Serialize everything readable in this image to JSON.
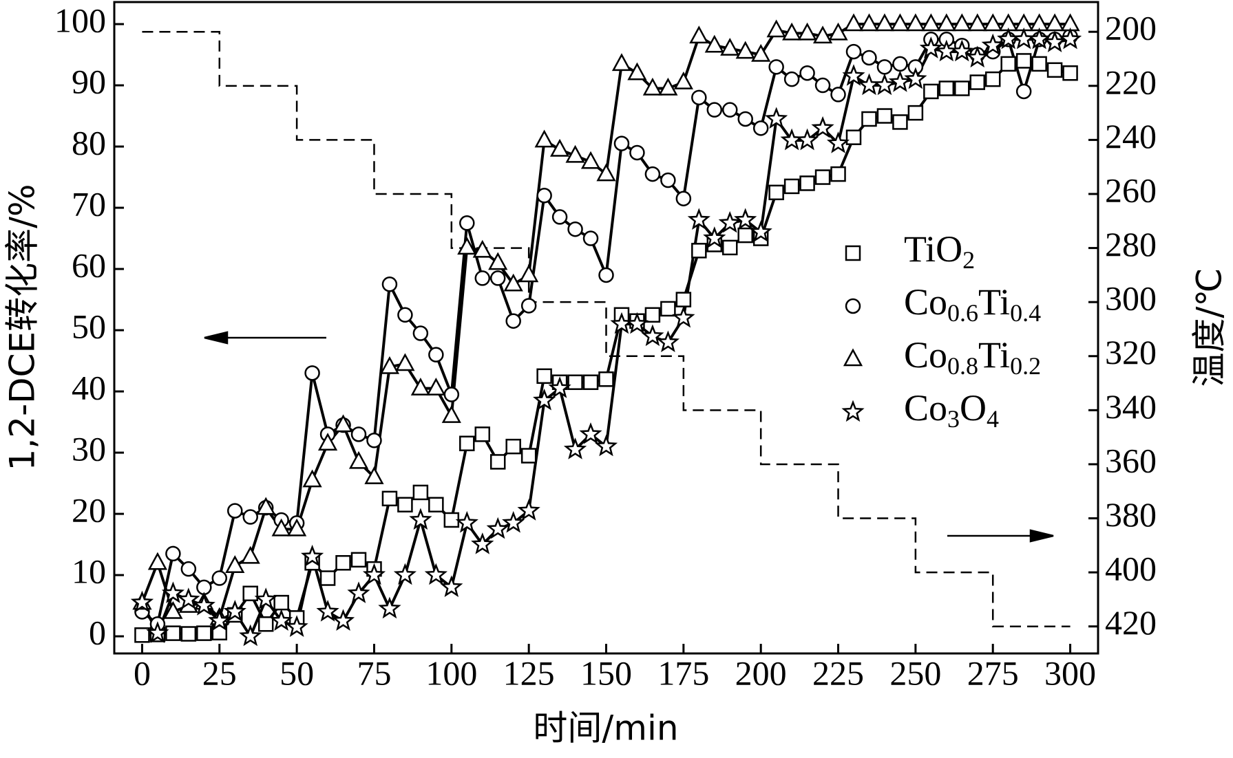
{
  "chart_data": {
    "type": "line",
    "x_label": "时间/min",
    "y_label": "1,2-DCE转化率/%",
    "y2_label": "温度/℃",
    "xlim": [
      -9,
      309
    ],
    "xticks": [
      0,
      25,
      50,
      75,
      100,
      125,
      150,
      175,
      200,
      225,
      250,
      275,
      300
    ],
    "ylim": [
      -2.8,
      103.6
    ],
    "yticks": [
      0,
      10,
      20,
      30,
      40,
      50,
      60,
      70,
      80,
      90,
      100
    ],
    "y2lim": [
      430,
      189
    ],
    "y2ticks": [
      200,
      220,
      240,
      260,
      280,
      300,
      320,
      340,
      360,
      380,
      400,
      420
    ],
    "legend": "right",
    "x": [
      0,
      5,
      10,
      15,
      20,
      25,
      30,
      35,
      40,
      45,
      50,
      55,
      60,
      65,
      70,
      75,
      80,
      85,
      90,
      95,
      100,
      105,
      110,
      115,
      120,
      125,
      130,
      135,
      140,
      145,
      150,
      155,
      160,
      165,
      170,
      175,
      180,
      185,
      190,
      195,
      200,
      205,
      210,
      215,
      220,
      225,
      230,
      235,
      240,
      245,
      250,
      255,
      260,
      265,
      270,
      275,
      280,
      285,
      290,
      295,
      300
    ],
    "series": [
      {
        "name": "TiO2",
        "marker": "square",
        "color": "#000000",
        "values": [
          0.2,
          0.3,
          0.5,
          0.4,
          0.5,
          0.6,
          3.5,
          7,
          2,
          5.5,
          3,
          12,
          9.5,
          12,
          12.5,
          11,
          22.5,
          21.5,
          23.5,
          21.5,
          19,
          31.5,
          33,
          28.5,
          31,
          29.5,
          42.5,
          41.5,
          41.5,
          41.5,
          42,
          52.5,
          51.5,
          52.5,
          53.5,
          55,
          63,
          64,
          63.5,
          65.5,
          65,
          72.5,
          73.5,
          74,
          75,
          75.5,
          81.5,
          84.5,
          85,
          84,
          85.5,
          89,
          89.5,
          89.5,
          90.5,
          91,
          93.5,
          94,
          93.5,
          92.5,
          92
        ]
      },
      {
        "name": "Co0.6Ti0.4",
        "marker": "circle",
        "color": "#000000",
        "values": [
          4,
          2,
          13.5,
          11,
          8,
          9.5,
          20.5,
          19.5,
          21,
          19,
          18.5,
          43,
          33,
          34.5,
          33,
          32,
          57.5,
          52.5,
          49.5,
          46,
          39.5,
          67.5,
          58.5,
          58.5,
          51.5,
          54,
          72,
          68.5,
          66.5,
          65,
          59,
          80.5,
          79,
          75.5,
          74.5,
          71.5,
          88,
          86,
          86,
          84.5,
          83,
          93,
          91,
          92,
          90,
          88.5,
          95.5,
          94.5,
          93,
          93.5,
          93,
          97.5,
          97.5,
          96.5,
          95,
          95.5,
          97.5,
          89,
          97.5,
          97.5,
          98
        ]
      },
      {
        "name": "Co0.8Ti0.2",
        "marker": "triangle",
        "color": "#000000",
        "values": [
          5.5,
          12,
          4,
          5,
          5.5,
          3,
          11.5,
          13,
          21,
          17.5,
          17.5,
          25.5,
          31.5,
          34.5,
          28.5,
          26,
          44,
          44.5,
          40.5,
          40.5,
          36,
          63.5,
          63,
          61,
          57.5,
          59,
          81,
          79.5,
          78.5,
          77.5,
          75.5,
          93.5,
          92,
          89.5,
          89.5,
          90.5,
          98,
          96.5,
          96,
          95.5,
          95,
          99,
          98.5,
          98.5,
          98,
          98.5,
          100,
          100,
          100,
          100,
          100,
          100,
          100,
          100,
          100,
          100,
          100,
          100,
          100,
          100,
          100
        ]
      },
      {
        "name": "Co3O4",
        "marker": "star",
        "color": "#000000",
        "values": [
          5.5,
          0.5,
          7,
          6,
          5,
          2.5,
          4,
          0,
          6,
          2.5,
          1.5,
          13,
          4,
          2.5,
          7,
          10,
          4.5,
          10,
          19,
          10,
          8,
          18.5,
          15,
          17.5,
          18.5,
          20.5,
          38.5,
          40.5,
          30.5,
          33,
          31,
          51,
          51,
          49,
          48,
          52,
          68,
          65,
          67.5,
          68,
          66,
          84.5,
          81,
          81,
          83,
          80.5,
          91.5,
          90,
          90,
          90.5,
          91,
          96,
          95.5,
          95.5,
          94.5,
          96.5,
          97.5,
          97.5,
          97.5,
          97,
          97.5
        ]
      }
    ],
    "temperature": {
      "axis": "y2",
      "color": "#000000",
      "x": [
        0,
        25,
        25,
        50,
        50,
        75,
        75,
        100,
        100,
        125,
        125,
        150,
        150,
        175,
        175,
        200,
        200,
        225,
        225,
        250,
        250,
        275,
        275,
        300
      ],
      "values": [
        200,
        200,
        220,
        220,
        240,
        240,
        260,
        260,
        280,
        280,
        300,
        300,
        320,
        320,
        340,
        340,
        360,
        360,
        380,
        380,
        400,
        400,
        420,
        420
      ]
    }
  }
}
